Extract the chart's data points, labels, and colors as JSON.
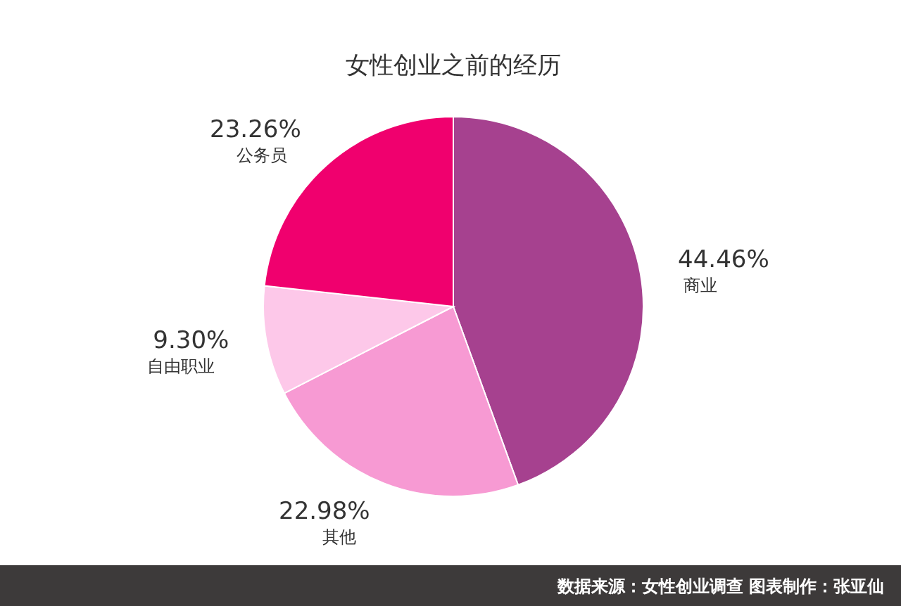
{
  "chart_data": {
    "type": "pie",
    "title": "女性创业之前的经历",
    "categories": [
      "商业",
      "其他",
      "自由职业",
      "公务员"
    ],
    "values": [
      44.46,
      22.98,
      9.3,
      23.26
    ],
    "value_labels": [
      "44.46%",
      "22.98%",
      "9.30%",
      "23.26%"
    ],
    "colors": [
      "#a6418f",
      "#f79ad3",
      "#fdc8e9",
      "#f0006e"
    ],
    "annotations": [
      "数据来源：女性创业调查  图表制作：张亚仙"
    ]
  }
}
